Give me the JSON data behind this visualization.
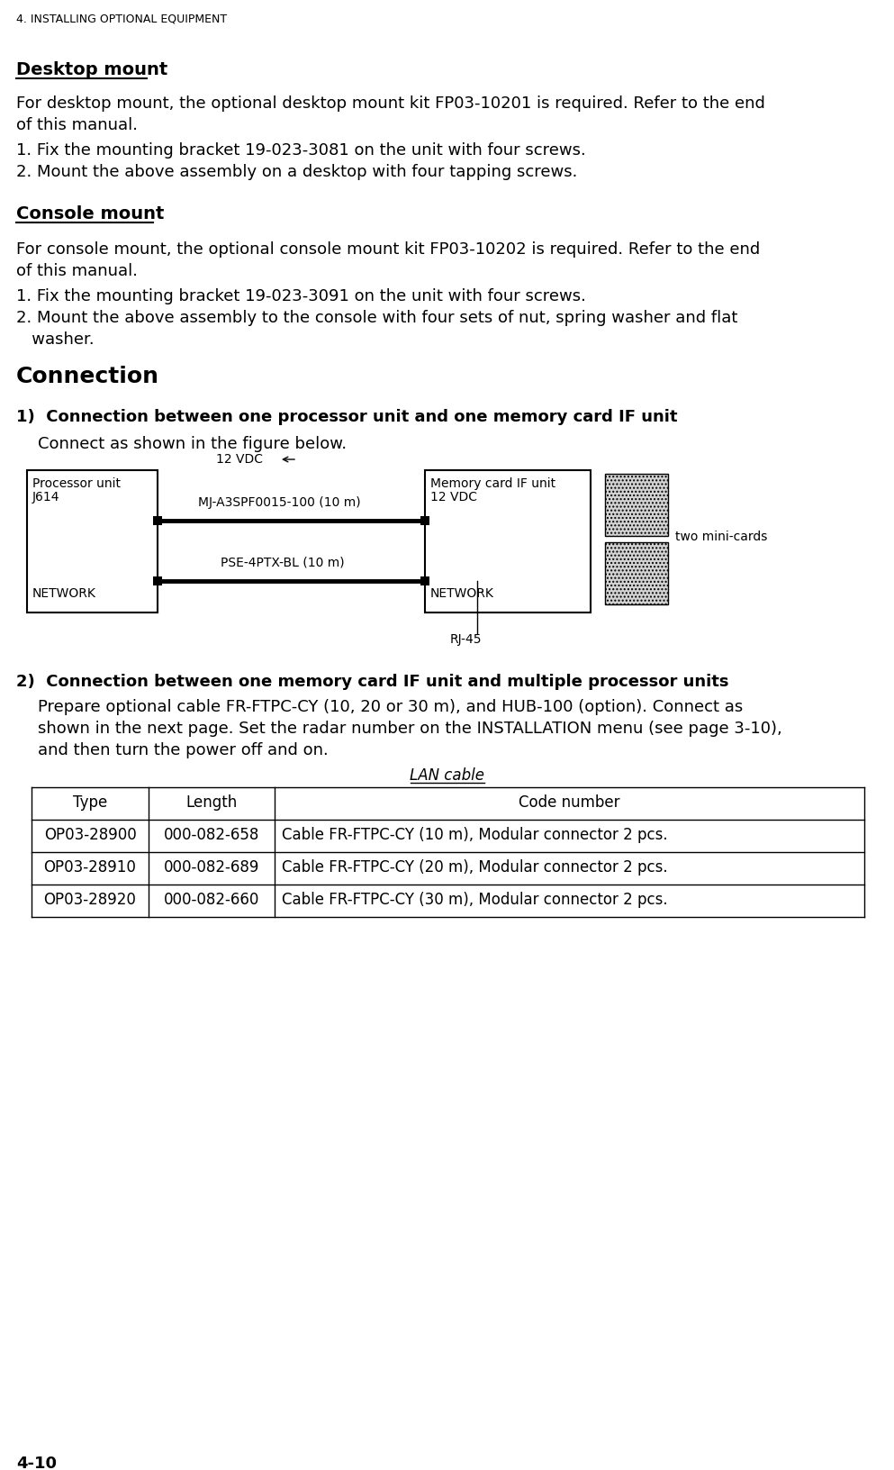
{
  "page_header": "4. INSTALLING OPTIONAL EQUIPMENT",
  "section1_title": "Desktop mount",
  "section2_title": "Console mount",
  "section3_title": "Connection",
  "section3_sub1": "1)  Connection between one processor unit and one memory card IF unit",
  "section3_sub1_intro": "Connect as shown in the figure below.",
  "section3_sub2": "2)  Connection between one memory card IF unit and multiple processor units",
  "section3_sub2_lines": [
    "Prepare optional cable FR-FTPC-CY (10, 20 or 30 m), and HUB-100 (option). Connect as",
    "shown in the next page. Set the radar number on the INSTALLATION menu (see page 3-10),",
    "and then turn the power off and on."
  ],
  "desk_para1": "For desktop mount, the optional desktop mount kit FP03-10201 is required. Refer to the end",
  "desk_para2": "of this manual.",
  "desk_item1": "1. Fix the mounting bracket 19-023-3081 on the unit with four screws.",
  "desk_item2": "2. Mount the above assembly on a desktop with four tapping screws.",
  "cons_para1": "For console mount, the optional console mount kit FP03-10202 is required. Refer to the end",
  "cons_para2": "of this manual.",
  "cons_item1": "1. Fix the mounting bracket 19-023-3091 on the unit with four screws.",
  "cons_item2a": "2. Mount the above assembly to the console with four sets of nut, spring washer and flat",
  "cons_item2b": "   washer.",
  "table_title": "LAN cable",
  "table_headers": [
    "Type",
    "Length",
    "Code number"
  ],
  "table_rows": [
    [
      "OP03-28900",
      "000-082-658",
      "Cable FR-FTPC-CY (10 m), Modular connector 2 pcs."
    ],
    [
      "OP03-28910",
      "000-082-689",
      "Cable FR-FTPC-CY (20 m), Modular connector 2 pcs."
    ],
    [
      "OP03-28920",
      "000-082-660",
      "Cable FR-FTPC-CY (30 m), Modular connector 2 pcs."
    ]
  ],
  "page_footer": "4-10",
  "bg_color": "#ffffff"
}
